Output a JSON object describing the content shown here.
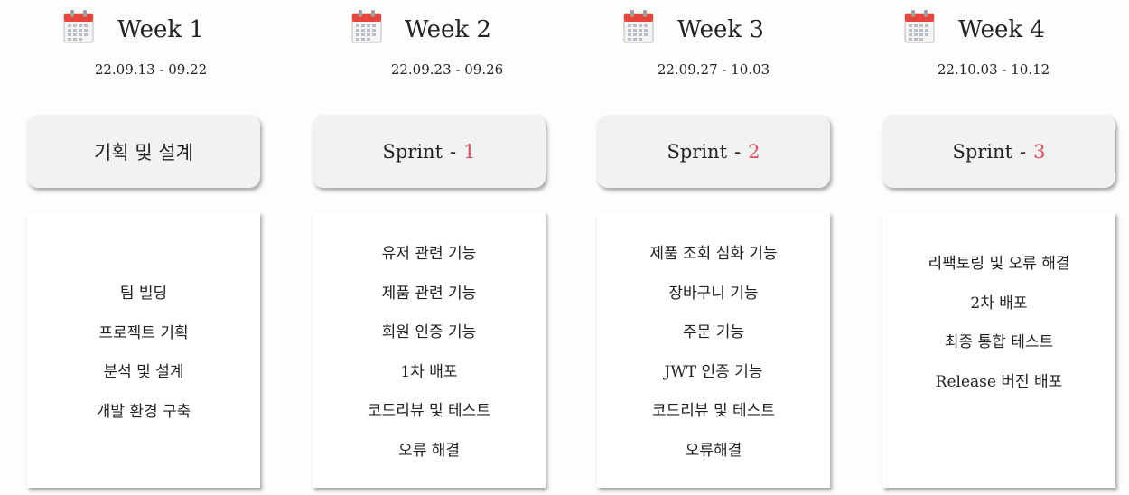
{
  "weeks": [
    {
      "title": "Week 1",
      "dates": "22.09.13  -  09.22",
      "phase": {
        "label": "기획 및 설계",
        "sep": "",
        "num": ""
      },
      "tasks": [
        "팀 빌딩",
        "프로젝트 기획",
        "분석 및 설계",
        "개발 환경 구축"
      ]
    },
    {
      "title": "Week 2",
      "dates": "22.09.23  -  09.26",
      "phase": {
        "label": "Sprint",
        "sep": "-",
        "num": "1"
      },
      "tasks": [
        "유저 관련 기능",
        "제품 관련 기능",
        "회원 인증 기능",
        "1차 배포",
        "코드리뷰 및 테스트",
        "오류 해결"
      ]
    },
    {
      "title": "Week 3",
      "dates": "22.09.27  -  10.03",
      "phase": {
        "label": "Sprint",
        "sep": "-",
        "num": "2"
      },
      "tasks": [
        "제품 조회 심화 기능",
        "장바구니 기능",
        "주문 기능",
        "JWT 인증 기능",
        "코드리뷰 및 테스트",
        "오류해결"
      ]
    },
    {
      "title": "Week 4",
      "dates": "22.10.03 - 10.12",
      "phase": {
        "label": "Sprint",
        "sep": "-",
        "num": "3"
      },
      "tasks": [
        "리팩토링 및 오류 해결",
        "2차 배포",
        "최종 통합 테스트",
        "Release 버전 배포"
      ]
    }
  ],
  "colors": {
    "accent": "#e0505e",
    "calendar_top": "#e8453c",
    "phase_bg": "#f2f2f2",
    "card_bg": "#ffffff"
  },
  "icons": {
    "calendar": "calendar-icon"
  }
}
